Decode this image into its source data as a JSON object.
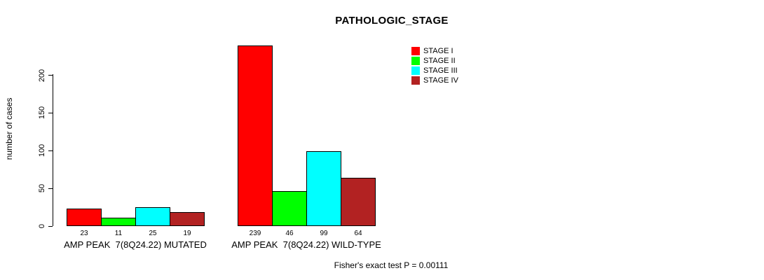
{
  "title": "PATHOLOGIC_STAGE",
  "y_axis": {
    "label": "number of cases",
    "ticks": [
      0,
      50,
      100,
      150,
      200
    ]
  },
  "legend": {
    "items": [
      {
        "label": "STAGE I",
        "color": "#FF0000"
      },
      {
        "label": "STAGE II",
        "color": "#00FF00"
      },
      {
        "label": "STAGE III",
        "color": "#00FFFF"
      },
      {
        "label": "STAGE IV",
        "color": "#B22222"
      }
    ]
  },
  "footer": "Fisher's exact test P = 0.00111",
  "chart_data": {
    "type": "bar",
    "title": "PATHOLOGIC_STAGE",
    "xlabel": "",
    "ylabel": "number of cases",
    "ylim": [
      0,
      240
    ],
    "yticks": [
      0,
      50,
      100,
      150,
      200
    ],
    "grid": false,
    "legend_position": "top-right",
    "series_names": [
      "STAGE I",
      "STAGE II",
      "STAGE III",
      "STAGE IV"
    ],
    "colors": [
      "#FF0000",
      "#00FF00",
      "#00FFFF",
      "#B22222"
    ],
    "groups": [
      {
        "label": "AMP PEAK  7(8Q24.22) MUTATED",
        "values": [
          23,
          11,
          25,
          19
        ]
      },
      {
        "label": "AMP PEAK  7(8Q24.22) WILD-TYPE",
        "values": [
          239,
          46,
          99,
          64
        ]
      }
    ],
    "annotation": "Fisher's exact test P = 0.00111"
  }
}
